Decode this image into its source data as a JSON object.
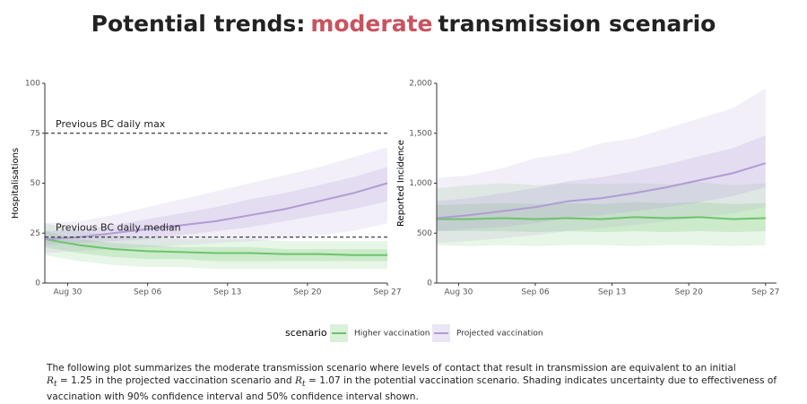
{
  "title": {
    "before": "Potential trends:",
    "highlight": "moderate",
    "after": "transmission scenario"
  },
  "chart_data": [
    {
      "type": "line",
      "y_label": "Hospitalisations",
      "x": [
        "Aug 28",
        "Aug 31",
        "Sep 03",
        "Sep 06",
        "Sep 09",
        "Sep 12",
        "Sep 15",
        "Sep 18",
        "Sep 21",
        "Sep 24",
        "Sep 27"
      ],
      "xlim": [
        "Aug 28",
        "Sep 27"
      ],
      "xticks": [
        "Aug 30",
        "Sep 06",
        "Sep 13",
        "Sep 20",
        "Sep 27"
      ],
      "ylim": [
        0,
        100
      ],
      "yticks": [
        0,
        25,
        50,
        75,
        100
      ],
      "hlines": [
        {
          "value": 75,
          "label": "Previous BC daily max"
        },
        {
          "value": 23,
          "label": "Previous BC daily median"
        }
      ],
      "series": [
        {
          "name": "Higher vaccination",
          "color": "#6cc46a",
          "values": [
            22,
            19,
            17,
            16,
            15.5,
            15,
            15,
            14.5,
            14.5,
            14,
            14
          ],
          "upper_90": [
            30,
            26,
            24,
            23,
            22,
            22,
            22,
            21,
            21,
            21,
            21
          ],
          "lower_90": [
            14,
            11,
            9,
            8,
            8,
            7,
            7,
            7,
            7,
            7,
            7
          ],
          "upper_50": [
            26,
            22,
            20,
            19,
            18,
            18,
            18,
            17,
            17,
            17,
            17
          ],
          "lower_50": [
            18,
            15,
            13,
            12,
            12,
            11,
            11,
            11,
            11,
            11,
            11
          ]
        },
        {
          "name": "Projected vaccination",
          "color": "#b09cd6",
          "values": [
            22,
            23,
            25,
            27,
            29,
            31,
            34,
            37,
            41,
            45,
            50
          ],
          "upper_90": [
            30,
            31,
            34,
            38,
            42,
            46,
            50,
            54,
            58,
            63,
            68
          ],
          "lower_90": [
            15,
            16,
            17,
            18,
            19,
            20,
            21,
            22,
            24,
            26,
            30
          ],
          "upper_50": [
            26,
            27,
            29,
            32,
            35,
            38,
            42,
            45,
            49,
            53,
            58
          ],
          "lower_50": [
            19,
            20,
            21,
            22,
            24,
            26,
            28,
            31,
            34,
            37,
            41
          ]
        }
      ]
    },
    {
      "type": "line",
      "y_label": "Reported Incidence",
      "x": [
        "Aug 28",
        "Aug 31",
        "Sep 03",
        "Sep 06",
        "Sep 09",
        "Sep 12",
        "Sep 15",
        "Sep 18",
        "Sep 21",
        "Sep 24",
        "Sep 27"
      ],
      "xlim": [
        "Aug 28",
        "Sep 28"
      ],
      "xticks": [
        "Aug 30",
        "Sep 06",
        "Sep 13",
        "Sep 20",
        "Sep 27"
      ],
      "ylim": [
        0,
        2000
      ],
      "yticks": [
        0,
        500,
        {
          "value": 1000,
          "label": "1,000"
        },
        {
          "value": 1500,
          "label": "1,500"
        },
        {
          "value": 2000,
          "label": "2,000"
        }
      ],
      "series": [
        {
          "name": "Higher vaccination",
          "color": "#6cc46a",
          "values": [
            640,
            640,
            650,
            640,
            650,
            640,
            660,
            650,
            660,
            640,
            650
          ],
          "upper_90": [
            950,
            980,
            1000,
            980,
            1000,
            990,
            1000,
            990,
            1010,
            980,
            1000
          ],
          "lower_90": [
            380,
            370,
            380,
            370,
            380,
            380,
            370,
            380,
            380,
            370,
            380
          ],
          "upper_50": [
            780,
            790,
            800,
            790,
            800,
            790,
            810,
            800,
            810,
            790,
            800
          ],
          "lower_50": [
            520,
            520,
            520,
            510,
            520,
            510,
            520,
            510,
            520,
            510,
            520
          ]
        },
        {
          "name": "Projected vaccination",
          "color": "#b09cd6",
          "values": [
            650,
            680,
            720,
            760,
            820,
            850,
            900,
            960,
            1030,
            1100,
            1200
          ],
          "upper_90": [
            1050,
            1080,
            1150,
            1250,
            1300,
            1400,
            1450,
            1550,
            1650,
            1750,
            1950
          ],
          "lower_90": [
            400,
            420,
            450,
            480,
            520,
            550,
            580,
            620,
            660,
            700,
            760
          ],
          "upper_50": [
            820,
            850,
            900,
            950,
            1020,
            1060,
            1120,
            1190,
            1270,
            1350,
            1480
          ],
          "lower_50": [
            520,
            540,
            560,
            600,
            650,
            680,
            720,
            760,
            810,
            870,
            960
          ]
        }
      ]
    }
  ],
  "legend": {
    "title": "scenario"
  },
  "footnote": {
    "line1": "The following plot summarizes the moderate transmission scenario where levels of contact that result in transmission are equivalent to an initial",
    "symbol": "R",
    "subscript": "t",
    "part2": "= 1.25 in the projected vaccination scenario and",
    "part3": "= 1.07 in the potential vaccination scenario. Shading indicates uncertainty due to effectiveness of vaccination with 90% confidence interval and 50% confidence interval shown."
  }
}
